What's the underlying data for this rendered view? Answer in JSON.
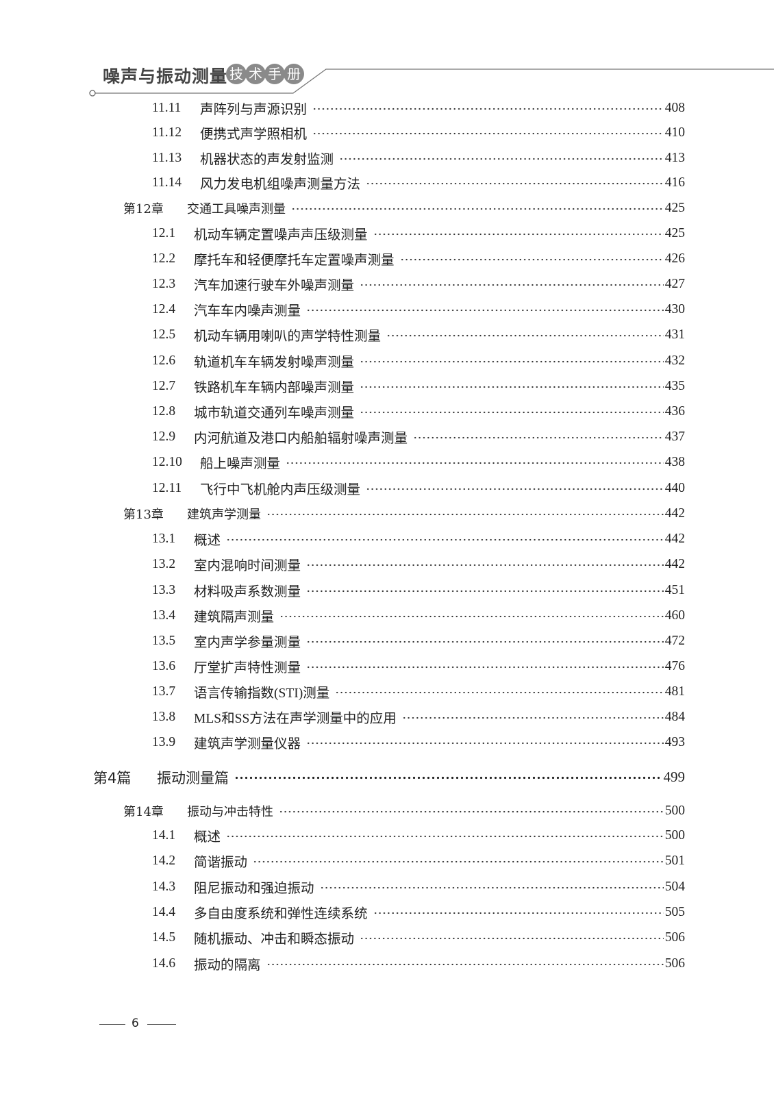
{
  "header": {
    "book_title": "噪声与振动测量",
    "badge_chars": [
      "技",
      "术",
      "手",
      "册"
    ]
  },
  "entries": [
    {
      "type": "sec",
      "num": "11.11",
      "title": "声阵列与声源识别",
      "page": "408"
    },
    {
      "type": "sec",
      "num": "11.12",
      "title": "便携式声学照相机",
      "page": "410"
    },
    {
      "type": "sec",
      "num": "11.13",
      "title": "机器状态的声发射监测",
      "page": "413"
    },
    {
      "type": "sec",
      "num": "11.14",
      "title": "风力发电机组噪声测量方法",
      "page": "416"
    },
    {
      "type": "chap",
      "num": "第12章",
      "title": "交通工具噪声测量",
      "page": "425"
    },
    {
      "type": "sec",
      "num": "12.1",
      "title": "机动车辆定置噪声声压级测量",
      "page": "425"
    },
    {
      "type": "sec",
      "num": "12.2",
      "title": "摩托车和轻便摩托车定置噪声测量",
      "page": "426"
    },
    {
      "type": "sec",
      "num": "12.3",
      "title": "汽车加速行驶车外噪声测量",
      "page": "427"
    },
    {
      "type": "sec",
      "num": "12.4",
      "title": "汽车车内噪声测量",
      "page": "430"
    },
    {
      "type": "sec",
      "num": "12.5",
      "title": "机动车辆用喇叭的声学特性测量",
      "page": "431"
    },
    {
      "type": "sec",
      "num": "12.6",
      "title": "轨道机车车辆发射噪声测量",
      "page": "432"
    },
    {
      "type": "sec",
      "num": "12.7",
      "title": "铁路机车车辆内部噪声测量",
      "page": "435"
    },
    {
      "type": "sec",
      "num": "12.8",
      "title": "城市轨道交通列车噪声测量",
      "page": "436"
    },
    {
      "type": "sec",
      "num": "12.9",
      "title": "内河航道及港口内船舶辐射噪声测量",
      "page": "437"
    },
    {
      "type": "sec",
      "num": "12.10",
      "title": "船上噪声测量",
      "page": "438"
    },
    {
      "type": "sec",
      "num": "12.11",
      "title": "飞行中飞机舱内声压级测量",
      "page": "440"
    },
    {
      "type": "chap",
      "num": "第13章",
      "title": "建筑声学测量",
      "page": "442"
    },
    {
      "type": "sec",
      "num": "13.1",
      "title": "概述",
      "page": "442"
    },
    {
      "type": "sec",
      "num": "13.2",
      "title": "室内混响时间测量",
      "page": "442"
    },
    {
      "type": "sec",
      "num": "13.3",
      "title": "材料吸声系数测量",
      "page": "451"
    },
    {
      "type": "sec",
      "num": "13.4",
      "title": "建筑隔声测量",
      "page": "460"
    },
    {
      "type": "sec",
      "num": "13.5",
      "title": "室内声学参量测量",
      "page": "472"
    },
    {
      "type": "sec",
      "num": "13.6",
      "title": "厅堂扩声特性测量",
      "page": "476"
    },
    {
      "type": "sec",
      "num": "13.7",
      "title": "语言传输指数(STI)测量",
      "page": "481"
    },
    {
      "type": "sec",
      "num": "13.8",
      "title": "MLS和SS方法在声学测量中的应用",
      "page": "484"
    },
    {
      "type": "sec",
      "num": "13.9",
      "title": "建筑声学测量仪器",
      "page": "493"
    },
    {
      "type": "part",
      "num": "第4篇",
      "title": "振动测量篇",
      "page": "499"
    },
    {
      "type": "chap",
      "num": "第14章",
      "title": "振动与冲击特性",
      "page": "500"
    },
    {
      "type": "sec",
      "num": "14.1",
      "title": "概述",
      "page": "500"
    },
    {
      "type": "sec",
      "num": "14.2",
      "title": "简谐振动",
      "page": "501"
    },
    {
      "type": "sec",
      "num": "14.3",
      "title": "阻尼振动和强迫振动",
      "page": "504"
    },
    {
      "type": "sec",
      "num": "14.4",
      "title": "多自由度系统和弹性连续系统",
      "page": "505"
    },
    {
      "type": "sec",
      "num": "14.5",
      "title": "随机振动、冲击和瞬态振动",
      "page": "506"
    },
    {
      "type": "sec",
      "num": "14.6",
      "title": "振动的隔离",
      "page": "506"
    }
  ],
  "footer": {
    "page_number": "6"
  }
}
